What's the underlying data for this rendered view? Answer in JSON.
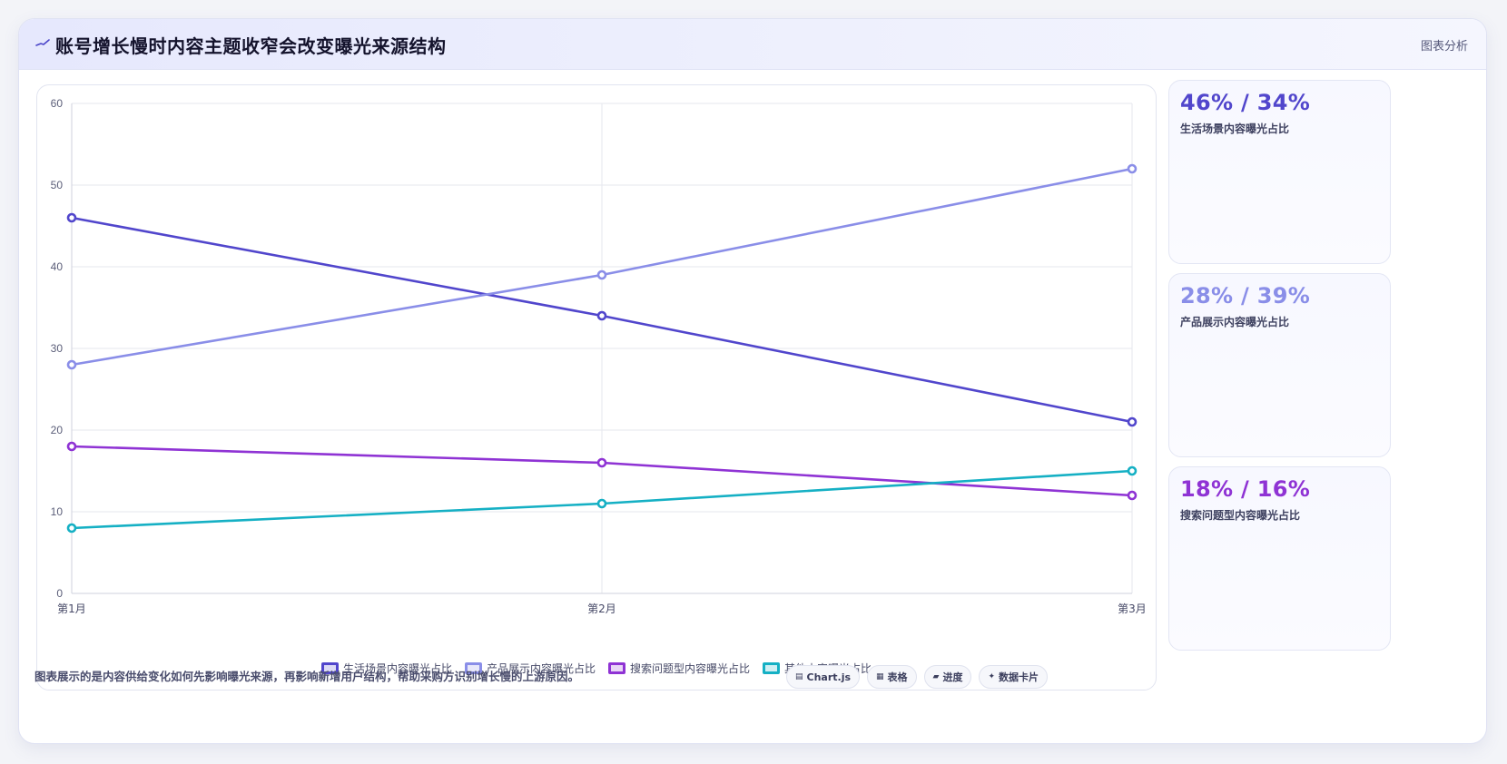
{
  "header": {
    "icon": "trend-line-icon",
    "title": "账号增长慢时内容主题收窄会改变曝光来源结构",
    "tag": "图表分析"
  },
  "chart_data": {
    "type": "line",
    "categories": [
      "第1月",
      "第2月",
      "第3月"
    ],
    "ylim": [
      0,
      60
    ],
    "yticks": [
      0,
      10,
      20,
      30,
      40,
      50,
      60
    ],
    "grid": true,
    "legend_position": "bottom",
    "series": [
      {
        "name": "生活场景内容曝光占比",
        "values": [
          46,
          34,
          21
        ],
        "color": "#5146cc"
      },
      {
        "name": "产品展示内容曝光占比",
        "values": [
          28,
          39,
          52
        ],
        "color": "#8a8ee8"
      },
      {
        "name": "搜索问题型内容曝光占比",
        "values": [
          18,
          16,
          12
        ],
        "color": "#8f33d4"
      },
      {
        "name": "其他内容曝光占比",
        "values": [
          8,
          11,
          15
        ],
        "color": "#15b0c4"
      }
    ]
  },
  "kpis": [
    {
      "value": "46% / 34%",
      "label": "生活场景内容曝光占比",
      "color": "#5146cc"
    },
    {
      "value": "28% / 39%",
      "label": "产品展示内容曝光占比",
      "color": "#8a8ee8"
    },
    {
      "value": "18% / 16%",
      "label": "搜索问题型内容曝光占比",
      "color": "#8f33d4"
    }
  ],
  "footer": {
    "note": "图表展示的是内容供给变化如何先影响曝光来源，再影响新增用户结构，帮助采购方识别增长慢的上游原因。",
    "chips": [
      {
        "icon": "chart-icon",
        "glyph": "▤",
        "label": "Chart.js"
      },
      {
        "icon": "table-icon",
        "glyph": "▦",
        "label": "表格"
      },
      {
        "icon": "progress-icon",
        "glyph": "▰",
        "label": "进度"
      },
      {
        "icon": "sparkle-icon",
        "glyph": "✦",
        "label": "数据卡片"
      }
    ]
  }
}
